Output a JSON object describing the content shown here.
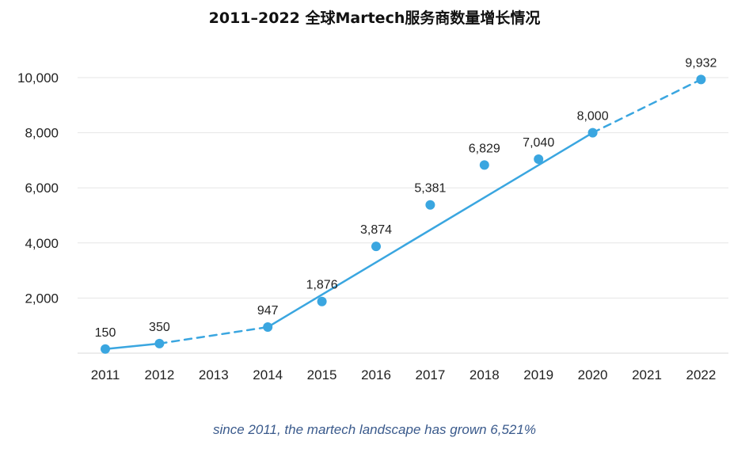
{
  "chart_data": {
    "type": "line",
    "title": "2011–2022 全球Martech服务商数量增长情况",
    "caption": "since 2011, the martech landscape has grown 6,521%",
    "categories": [
      "2011",
      "2012",
      "2013",
      "2014",
      "2015",
      "2016",
      "2017",
      "2018",
      "2019",
      "2020",
      "2021",
      "2022"
    ],
    "series": [
      {
        "values": [
          150,
          350,
          null,
          947,
          1876,
          3874,
          5381,
          6829,
          7040,
          8000,
          null,
          9932
        ],
        "labels": [
          "150",
          "350",
          "",
          "947",
          "1,876",
          "3,874",
          "5,381",
          "6,829",
          "7,040",
          "8,000",
          "",
          "9,932"
        ],
        "color": "#3aa6e0"
      }
    ],
    "segments": [
      {
        "from": "2011",
        "to": "2012",
        "style": "solid"
      },
      {
        "from": "2012",
        "to": "2014",
        "style": "dashed"
      },
      {
        "from": "2014",
        "to": "2020",
        "style": "solid"
      },
      {
        "from": "2020",
        "to": "2022",
        "style": "dashed"
      }
    ],
    "y_ticks": [
      {
        "value": 2000,
        "label": "2,000"
      },
      {
        "value": 4000,
        "label": "4,000"
      },
      {
        "value": 6000,
        "label": "6,000"
      },
      {
        "value": 8000,
        "label": "8,000"
      },
      {
        "value": 10000,
        "label": "10,000"
      }
    ],
    "ylim": [
      0,
      10000
    ],
    "grid": true,
    "legend": "none"
  }
}
